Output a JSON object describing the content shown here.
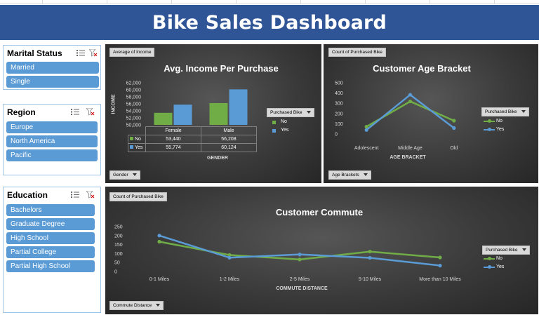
{
  "header": {
    "title": "Bike Sales Dashboard"
  },
  "colors": {
    "banner": "#2f5597",
    "no": "#70ad47",
    "yes": "#5b9bd5",
    "slicer_item": "#5b9bd5"
  },
  "slicers": {
    "marital": {
      "title": "Marital Status",
      "items": [
        "Married",
        "Single"
      ]
    },
    "region": {
      "title": "Region",
      "items": [
        "Europe",
        "North America",
        "Pacific"
      ]
    },
    "education": {
      "title": "Education",
      "items": [
        "Bachelors",
        "Graduate Degree",
        "High School",
        "Partial College",
        "Partial High School"
      ]
    }
  },
  "income": {
    "field_tag": "Average of Income",
    "axis_button": "Gender",
    "legend_button": "Purchased Bike",
    "legend": [
      "No",
      "Yes"
    ],
    "table": {
      "headers": [
        "Female",
        "Male"
      ],
      "rows": [
        {
          "label": "No",
          "values": [
            "53,440",
            "56,208"
          ]
        },
        {
          "label": "Yes",
          "values": [
            "55,774",
            "60,124"
          ]
        }
      ]
    }
  },
  "age": {
    "field_tag": "Count of Purchased Bike",
    "axis_button": "Age Brackets",
    "legend_button": "Purchased Bike",
    "legend": [
      "No",
      "Yes"
    ]
  },
  "commute": {
    "field_tag": "Count of Purchased Bike",
    "axis_button": "Commute Distance",
    "legend_button": "Purchased Bike",
    "legend": [
      "No",
      "Yes"
    ]
  },
  "chart_data": [
    {
      "type": "bar",
      "title": "Avg. Income Per Purchase",
      "xlabel": "GENDER",
      "ylabel": "INCOME",
      "categories": [
        "Female",
        "Male"
      ],
      "ylim": [
        50000,
        62000
      ],
      "yticks": [
        "62,000",
        "60,000",
        "58,000",
        "56,000",
        "54,000",
        "52,000",
        "50,000"
      ],
      "series": [
        {
          "name": "No",
          "values": [
            53440,
            56208
          ]
        },
        {
          "name": "Yes",
          "values": [
            55774,
            60124
          ]
        }
      ]
    },
    {
      "type": "line",
      "title": "Customer Age Bracket",
      "xlabel": "AGE BRACKET",
      "categories": [
        "Adolescent",
        "Middle Age",
        "Old"
      ],
      "ylim": [
        0,
        500
      ],
      "yticks": [
        "500",
        "400",
        "300",
        "200",
        "100",
        "0"
      ],
      "series": [
        {
          "name": "No",
          "values": [
            71,
            318,
            130
          ]
        },
        {
          "name": "Yes",
          "values": [
            39,
            383,
            58
          ]
        }
      ]
    },
    {
      "type": "line",
      "title": "Customer Commute",
      "xlabel": "COMMUTE DISTANCE",
      "categories": [
        "0-1 Miles",
        "1-2 Miles",
        "2-5 Miles",
        "5-10 Miles",
        "More than 10 Miles"
      ],
      "ylim": [
        0,
        250
      ],
      "yticks": [
        "250",
        "200",
        "150",
        "100",
        "50",
        "0"
      ],
      "series": [
        {
          "name": "No",
          "values": [
            166,
            92,
            67,
            111,
            78
          ]
        },
        {
          "name": "Yes",
          "values": [
            200,
            77,
            95,
            76,
            33
          ]
        }
      ]
    }
  ]
}
